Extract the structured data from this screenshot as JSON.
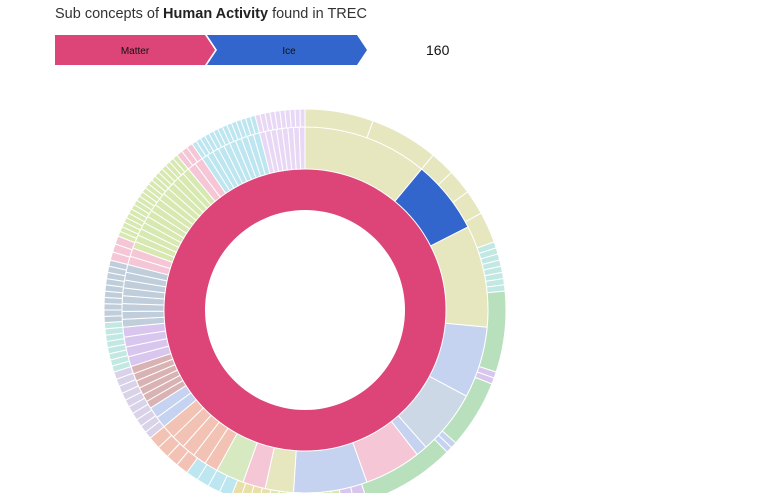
{
  "title": {
    "prefix": "Sub concepts of",
    "concept": "Human Activity",
    "suffix": "found in TREC"
  },
  "breadcrumb": [
    {
      "label": "Matter",
      "color": "#dd4477"
    },
    {
      "label": "Ice",
      "color": "#3366cc"
    }
  ],
  "count": "160",
  "chart_data": {
    "type": "sunburst",
    "root": {
      "name": "Matter",
      "color": "#dd4477"
    },
    "selected": {
      "name": "Ice",
      "color": "#3366cc"
    },
    "rings": [
      {
        "level": 1,
        "segments": [
          {
            "start": 0.0,
            "end": 1.0,
            "color": "#dd4477"
          }
        ]
      },
      {
        "level": 2,
        "segments": [
          {
            "start": 0.0,
            "end": 0.11,
            "color": "#e6e6bf",
            "divisions": 1
          },
          {
            "start": 0.11,
            "end": 0.175,
            "color": "#3366cc",
            "divisions": 1
          },
          {
            "start": 0.175,
            "end": 0.265,
            "color": "#e6e6bf",
            "divisions": 1
          },
          {
            "start": 0.265,
            "end": 0.328,
            "color": "#c5d3f0",
            "divisions": 1
          },
          {
            "start": 0.328,
            "end": 0.385,
            "color": "#ccd8e6",
            "divisions": 1
          },
          {
            "start": 0.385,
            "end": 0.395,
            "color": "#c5d3f0",
            "divisions": 1
          },
          {
            "start": 0.395,
            "end": 0.445,
            "color": "#f5c6d6",
            "divisions": 1
          },
          {
            "start": 0.445,
            "end": 0.51,
            "color": "#c5d3f0",
            "divisions": 1
          },
          {
            "start": 0.51,
            "end": 0.535,
            "color": "#e6e6bf",
            "divisions": 1
          },
          {
            "start": 0.535,
            "end": 0.555,
            "color": "#f5c6d6",
            "divisions": 1
          },
          {
            "start": 0.555,
            "end": 0.58,
            "color": "#d7e9c0",
            "divisions": 1
          },
          {
            "start": 0.58,
            "end": 0.64,
            "color": "#f2c2b4",
            "divisions": 5
          },
          {
            "start": 0.64,
            "end": 0.66,
            "color": "#c5d3f0",
            "divisions": 2
          },
          {
            "start": 0.66,
            "end": 0.7,
            "color": "#d9b3b3",
            "divisions": 6
          },
          {
            "start": 0.7,
            "end": 0.735,
            "color": "#d8c6ef",
            "divisions": 4
          },
          {
            "start": 0.735,
            "end": 0.79,
            "color": "#c0cedc",
            "divisions": 8
          },
          {
            "start": 0.79,
            "end": 0.805,
            "color": "#f5c6d6",
            "divisions": 2
          },
          {
            "start": 0.805,
            "end": 0.89,
            "color": "#d7e9b0",
            "divisions": 14
          },
          {
            "start": 0.89,
            "end": 0.905,
            "color": "#f5c6d6",
            "divisions": 2
          },
          {
            "start": 0.905,
            "end": 0.96,
            "color": "#bde6f0",
            "divisions": 10
          },
          {
            "start": 0.96,
            "end": 1.0,
            "color": "#e8d8f5",
            "divisions": 8
          }
        ]
      },
      {
        "level": 3,
        "segments": [
          {
            "start": 0.0,
            "end": 0.11,
            "color": "#e6e6bf",
            "divisions": 2
          },
          {
            "start": 0.11,
            "end": 0.13,
            "color": "#e6e6bf",
            "divisions": 1
          },
          {
            "start": 0.13,
            "end": 0.15,
            "color": "#e6e6bf",
            "divisions": 1
          },
          {
            "start": 0.15,
            "end": 0.17,
            "color": "#e6e6bf",
            "divisions": 1
          },
          {
            "start": 0.17,
            "end": 0.195,
            "color": "#e6e6bf",
            "divisions": 1
          },
          {
            "start": 0.195,
            "end": 0.235,
            "color": "#c2e8e4",
            "divisions": 8
          },
          {
            "start": 0.235,
            "end": 0.3,
            "color": "#b8e0bc",
            "divisions": 1
          },
          {
            "start": 0.3,
            "end": 0.31,
            "color": "#d8c6ef",
            "divisions": 2
          },
          {
            "start": 0.31,
            "end": 0.365,
            "color": "#b8e0bc",
            "divisions": 1
          },
          {
            "start": 0.365,
            "end": 0.375,
            "color": "#c5d3f0",
            "divisions": 2
          },
          {
            "start": 0.375,
            "end": 0.45,
            "color": "#b8e0bc",
            "divisions": 1
          },
          {
            "start": 0.45,
            "end": 0.47,
            "color": "#d8c6ef",
            "divisions": 2
          },
          {
            "start": 0.47,
            "end": 0.53,
            "color": "#d7e9b0",
            "divisions": 8
          },
          {
            "start": 0.53,
            "end": 0.56,
            "color": "#e8e0a8",
            "divisions": 4
          },
          {
            "start": 0.56,
            "end": 0.6,
            "color": "#bde6f0",
            "divisions": 4
          },
          {
            "start": 0.6,
            "end": 0.64,
            "color": "#f2c2b4",
            "divisions": 4
          },
          {
            "start": 0.64,
            "end": 0.7,
            "color": "#d9d2e9",
            "divisions": 10
          },
          {
            "start": 0.7,
            "end": 0.74,
            "color": "#c2e8e4",
            "divisions": 8
          },
          {
            "start": 0.74,
            "end": 0.79,
            "color": "#c0cedc",
            "divisions": 10
          },
          {
            "start": 0.79,
            "end": 0.81,
            "color": "#f5c6d6",
            "divisions": 3
          },
          {
            "start": 0.81,
            "end": 0.89,
            "color": "#d7e9b0",
            "divisions": 20
          },
          {
            "start": 0.89,
            "end": 0.905,
            "color": "#f5c6d6",
            "divisions": 3
          },
          {
            "start": 0.905,
            "end": 0.96,
            "color": "#bde6f0",
            "divisions": 14
          },
          {
            "start": 0.96,
            "end": 1.0,
            "color": "#e8d8f5",
            "divisions": 10
          }
        ]
      }
    ]
  }
}
